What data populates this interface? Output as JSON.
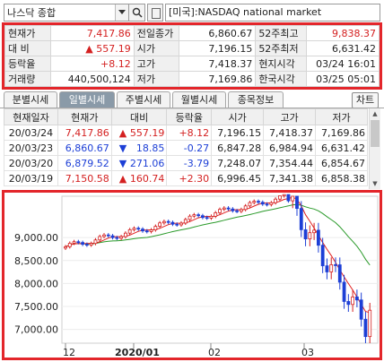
{
  "search": {
    "symbol": "나스닥 종합",
    "market": "[미국]:NASDAQ national market"
  },
  "info": {
    "rows": [
      [
        {
          "l": "현재가",
          "v": "7,417.86",
          "c": "red"
        },
        {
          "l": "전일종가",
          "v": "6,860.67",
          "c": ""
        },
        {
          "l": "52주최고",
          "v": "9,838.37",
          "c": "red"
        }
      ],
      [
        {
          "l": "대  비",
          "v": "▲  557.19",
          "c": "red"
        },
        {
          "l": "시가",
          "v": "7,196.15",
          "c": ""
        },
        {
          "l": "52주최저",
          "v": "6,631.42",
          "c": ""
        }
      ],
      [
        {
          "l": "등락율",
          "v": "+8.12",
          "c": "red"
        },
        {
          "l": "고가",
          "v": "7,418.37",
          "c": ""
        },
        {
          "l": "현지시각",
          "v": "03/24 16:01",
          "c": ""
        }
      ],
      [
        {
          "l": "거래량",
          "v": "440,500,124",
          "c": ""
        },
        {
          "l": "저가",
          "v": "7,169.86",
          "c": ""
        },
        {
          "l": "한국시각",
          "v": "03/25 05:01",
          "c": ""
        }
      ]
    ]
  },
  "tabs": {
    "items": [
      "분별시세",
      "일별시세",
      "주별시세",
      "월별시세",
      "종목정보"
    ],
    "active": 1,
    "chart_button": "차트"
  },
  "grid": {
    "headers": [
      "현재일자",
      "현재가",
      "대비",
      "등락율",
      "시가",
      "고가",
      "저가"
    ],
    "rows": [
      {
        "date": "20/03/24",
        "price": "7,417.86",
        "arrow": "▲",
        "chg": "557.19",
        "rate": "+8.12",
        "open": "7,196.15",
        "high": "7,418.37",
        "low": "7,169.86",
        "c": "red"
      },
      {
        "date": "20/03/23",
        "price": "6,860.67",
        "arrow": "▼",
        "chg": "18.85",
        "rate": "-0.27",
        "open": "6,847.28",
        "high": "6,984.94",
        "low": "6,631.42",
        "c": "blue"
      },
      {
        "date": "20/03/20",
        "price": "6,879.52",
        "arrow": "▼",
        "chg": "271.06",
        "rate": "-3.79",
        "open": "7,248.07",
        "high": "7,354.44",
        "low": "6,854.67",
        "c": "blue"
      },
      {
        "date": "20/03/19",
        "price": "7,150.58",
        "arrow": "▲",
        "chg": "160.74",
        "rate": "+2.30",
        "open": "6,996.45",
        "high": "7,341.38",
        "low": "6,858.38",
        "c": "red"
      }
    ]
  },
  "chart_data": {
    "type": "line",
    "y_ticks": [
      "9,000.00",
      "8,500.00",
      "8,000.00",
      "7,500.00",
      "7,000.00"
    ],
    "x_ticks": [
      "12",
      "2020/01",
      "02",
      "03"
    ],
    "ylim": [
      6700,
      9900
    ],
    "up_color": "#d42020",
    "down_color": "#1d3fd6",
    "ma_short_color": "#e02020",
    "ma_long_color": "#2a9a2a"
  }
}
